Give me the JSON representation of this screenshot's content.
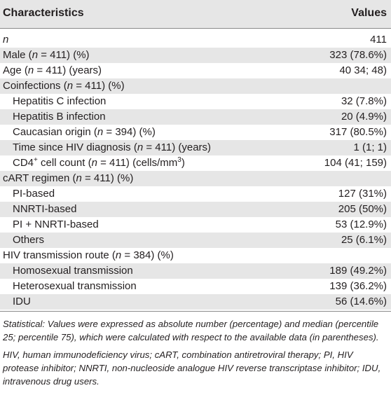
{
  "table": {
    "header": {
      "left": "Characteristics",
      "right": "Values"
    },
    "rows": [
      {
        "parts": [
          {
            "t": "n",
            "i": true
          }
        ],
        "value": "411",
        "indent": false,
        "shade": false
      },
      {
        "parts": [
          {
            "t": "Male ("
          },
          {
            "t": "n",
            "i": true
          },
          {
            "t": " = 411) (%)"
          }
        ],
        "value": "323 (78.6%)",
        "indent": false,
        "shade": true
      },
      {
        "parts": [
          {
            "t": "Age ("
          },
          {
            "t": "n",
            "i": true
          },
          {
            "t": " = 411) (years)"
          }
        ],
        "value": "40 34; 48)",
        "indent": false,
        "shade": false
      },
      {
        "parts": [
          {
            "t": "Coinfections ("
          },
          {
            "t": "n",
            "i": true
          },
          {
            "t": " = 411) (%)"
          }
        ],
        "value": "",
        "indent": false,
        "shade": true
      },
      {
        "parts": [
          {
            "t": "Hepatitis C infection"
          }
        ],
        "value": "32 (7.8%)",
        "indent": true,
        "shade": false
      },
      {
        "parts": [
          {
            "t": "Hepatitis B infection"
          }
        ],
        "value": "20 (4.9%)",
        "indent": true,
        "shade": true
      },
      {
        "parts": [
          {
            "t": "Caucasian origin ("
          },
          {
            "t": "n",
            "i": true
          },
          {
            "t": " = 394) (%)"
          }
        ],
        "value": "317 (80.5%)",
        "indent": true,
        "shade": false
      },
      {
        "parts": [
          {
            "t": "Time since HIV diagnosis ("
          },
          {
            "t": "n",
            "i": true
          },
          {
            "t": " = 411) (years)"
          }
        ],
        "value": "1 (1; 1)",
        "indent": true,
        "shade": true
      },
      {
        "parts": [
          {
            "t": "CD4"
          },
          {
            "t": "+",
            "sup": true
          },
          {
            "t": " cell count ("
          },
          {
            "t": "n",
            "i": true
          },
          {
            "t": " = 411) (cells/mm"
          },
          {
            "t": "3",
            "sup": true
          },
          {
            "t": ")"
          }
        ],
        "value": "104 (41; 159)",
        "indent": true,
        "shade": false
      },
      {
        "parts": [
          {
            "t": "cART regimen ("
          },
          {
            "t": "n",
            "i": true
          },
          {
            "t": " = 411) (%)"
          }
        ],
        "value": "",
        "indent": false,
        "shade": true
      },
      {
        "parts": [
          {
            "t": "PI-based"
          }
        ],
        "value": "127 (31%)",
        "indent": true,
        "shade": false
      },
      {
        "parts": [
          {
            "t": "NNRTI-based"
          }
        ],
        "value": "205 (50%)",
        "indent": true,
        "shade": true
      },
      {
        "parts": [
          {
            "t": "PI + NNRTI-based"
          }
        ],
        "value": "53 (12.9%)",
        "indent": true,
        "shade": false
      },
      {
        "parts": [
          {
            "t": "Others"
          }
        ],
        "value": "25 (6.1%)",
        "indent": true,
        "shade": true
      },
      {
        "parts": [
          {
            "t": "HIV transmission route ("
          },
          {
            "t": "n",
            "i": true
          },
          {
            "t": " = 384) (%)"
          }
        ],
        "value": "",
        "indent": false,
        "shade": false
      },
      {
        "parts": [
          {
            "t": "Homosexual transmission"
          }
        ],
        "value": "189 (49.2%)",
        "indent": true,
        "shade": true
      },
      {
        "parts": [
          {
            "t": "Heterosexual transmission"
          }
        ],
        "value": "139 (36.2%)",
        "indent": true,
        "shade": false
      },
      {
        "parts": [
          {
            "t": "IDU"
          }
        ],
        "value": "56 (14.6%)",
        "indent": true,
        "shade": true
      }
    ]
  },
  "notes": {
    "statistical": "Statistical: Values were expressed as absolute number (percentage) and median (percentile 25; percentile 75), which were calculated with respect to the available data (in parentheses).",
    "abbreviations": "HIV, human immunodeficiency virus; cART, combination antiretroviral therapy; PI, HIV protease inhibitor; NNRTI, non-nucleoside analogue HIV reverse transcriptase inhibitor; IDU, intravenous drug users."
  }
}
